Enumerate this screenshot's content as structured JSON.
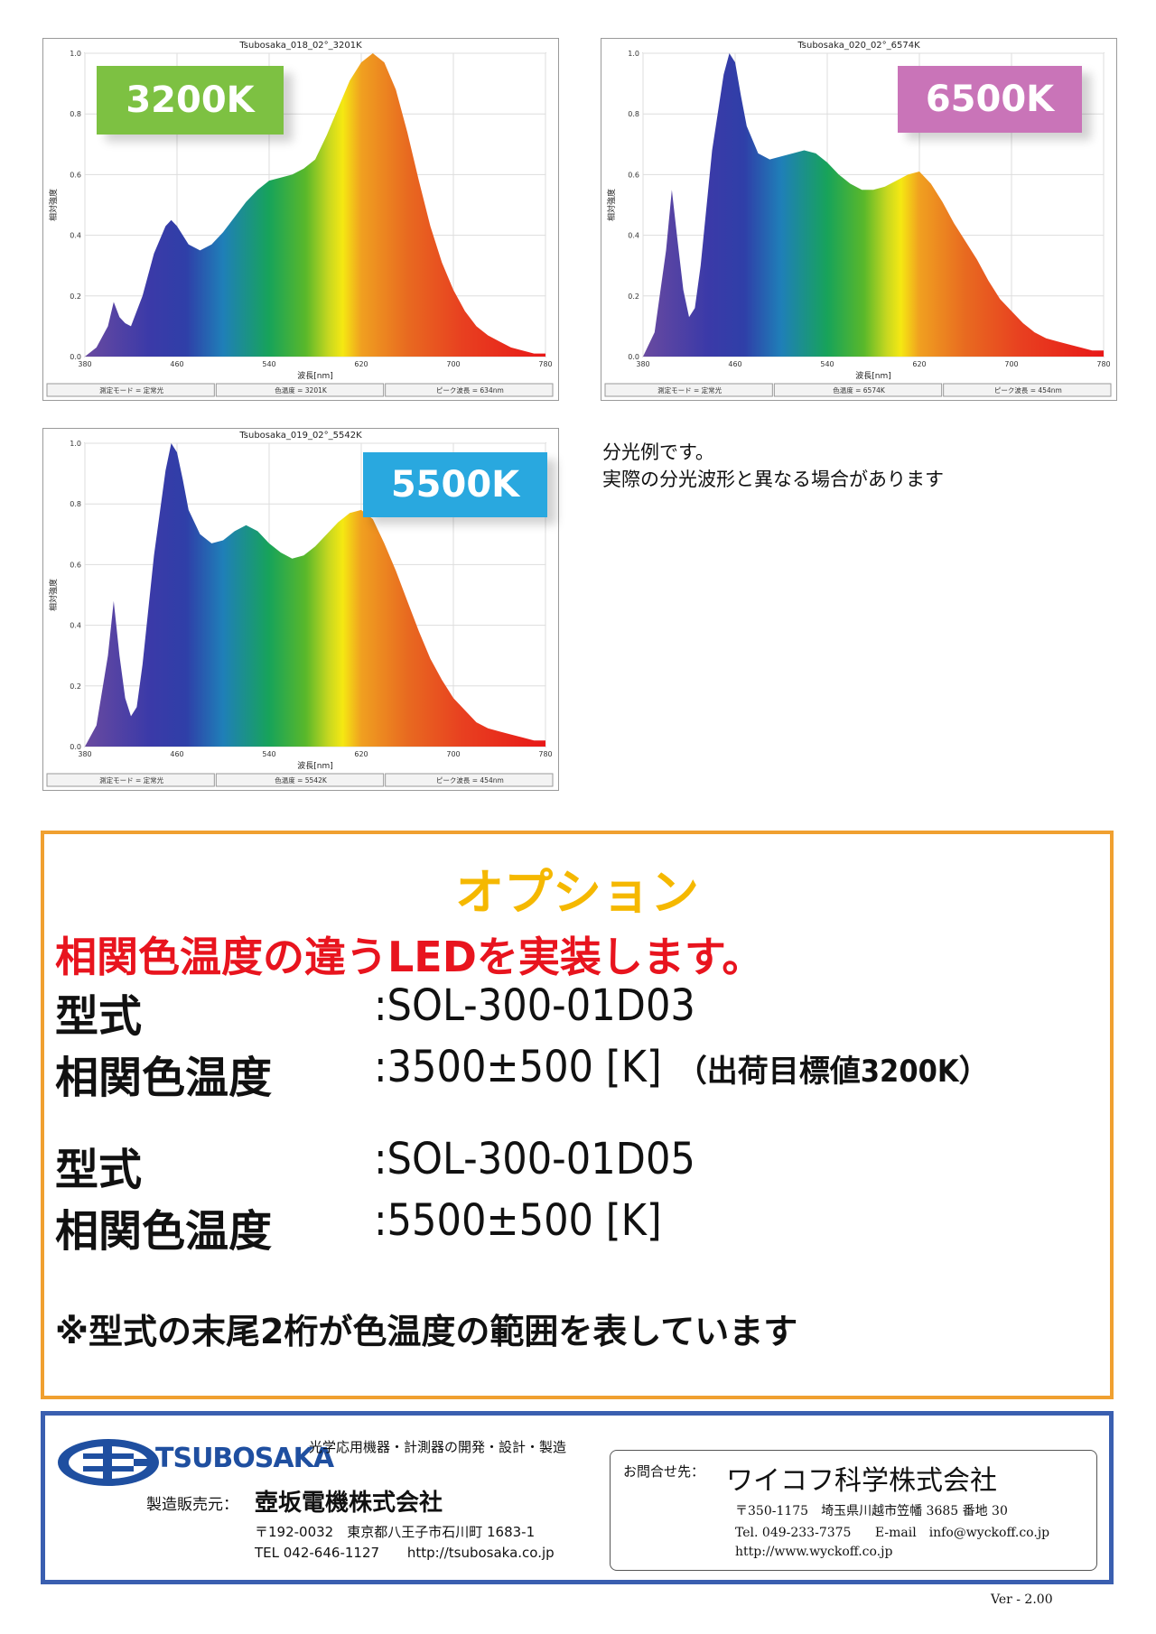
{
  "chart_data": [
    {
      "id": "c3200",
      "type": "area",
      "title": "Tsubosaka_018_02°_3201K",
      "badge": "3200K",
      "badge_color": "#7dc142",
      "xlabel": "波長[nm]",
      "ylabel": "相対強度",
      "xlim": [
        380,
        780
      ],
      "ylim": [
        0,
        1.0
      ],
      "xticks": [
        "380",
        "460",
        "540",
        "620",
        "700",
        "780"
      ],
      "yticks": [
        "0.0",
        "0.2",
        "0.4",
        "0.6",
        "0.8",
        "1.0"
      ],
      "grid": true,
      "x": [
        380,
        390,
        400,
        405,
        410,
        415,
        420,
        430,
        440,
        450,
        455,
        460,
        470,
        480,
        490,
        500,
        510,
        520,
        530,
        540,
        550,
        560,
        570,
        580,
        590,
        600,
        610,
        620,
        630,
        640,
        650,
        660,
        670,
        680,
        690,
        700,
        710,
        720,
        730,
        740,
        750,
        760,
        770,
        780
      ],
      "y": [
        0.0,
        0.03,
        0.1,
        0.18,
        0.13,
        0.11,
        0.1,
        0.2,
        0.34,
        0.43,
        0.45,
        0.43,
        0.37,
        0.35,
        0.37,
        0.41,
        0.46,
        0.51,
        0.55,
        0.58,
        0.59,
        0.6,
        0.62,
        0.65,
        0.73,
        0.82,
        0.91,
        0.97,
        1.0,
        0.97,
        0.88,
        0.74,
        0.58,
        0.43,
        0.31,
        0.22,
        0.15,
        0.1,
        0.07,
        0.05,
        0.03,
        0.02,
        0.01,
        0.01
      ],
      "status": [
        "測定モード = 定常光",
        "色温度 = 3201K",
        "ピーク波長 = 634nm"
      ]
    },
    {
      "id": "c6500",
      "type": "area",
      "title": "Tsubosaka_020_02°_6574K",
      "badge": "6500K",
      "badge_color": "#c974b8",
      "xlabel": "波長[nm]",
      "ylabel": "相対強度",
      "xlim": [
        380,
        780
      ],
      "ylim": [
        0,
        1.0
      ],
      "xticks": [
        "380",
        "460",
        "540",
        "620",
        "700",
        "780"
      ],
      "yticks": [
        "0.0",
        "0.2",
        "0.4",
        "0.6",
        "0.8",
        "1.0"
      ],
      "grid": true,
      "x": [
        380,
        390,
        400,
        405,
        410,
        415,
        420,
        425,
        430,
        440,
        450,
        455,
        460,
        465,
        470,
        480,
        490,
        500,
        510,
        520,
        530,
        540,
        550,
        560,
        570,
        580,
        590,
        600,
        610,
        620,
        630,
        640,
        650,
        660,
        670,
        680,
        690,
        700,
        710,
        720,
        730,
        740,
        750,
        760,
        770,
        780
      ],
      "y": [
        0.0,
        0.08,
        0.35,
        0.55,
        0.38,
        0.22,
        0.13,
        0.16,
        0.3,
        0.68,
        0.93,
        1.0,
        0.97,
        0.86,
        0.76,
        0.67,
        0.65,
        0.66,
        0.67,
        0.68,
        0.67,
        0.64,
        0.6,
        0.57,
        0.55,
        0.55,
        0.56,
        0.58,
        0.6,
        0.61,
        0.57,
        0.51,
        0.44,
        0.38,
        0.32,
        0.25,
        0.19,
        0.15,
        0.11,
        0.08,
        0.06,
        0.05,
        0.04,
        0.03,
        0.02,
        0.02
      ],
      "status": [
        "測定モード = 定常光",
        "色温度 = 6574K",
        "ピーク波長 = 454nm"
      ]
    },
    {
      "id": "c5500",
      "type": "area",
      "title": "Tsubosaka_019_02°_5542K",
      "badge": "5500K",
      "badge_color": "#29a8df",
      "xlabel": "波長[nm]",
      "ylabel": "相対強度",
      "xlim": [
        380,
        780
      ],
      "ylim": [
        0,
        1.0
      ],
      "xticks": [
        "380",
        "460",
        "540",
        "620",
        "700",
        "780"
      ],
      "yticks": [
        "0.0",
        "0.2",
        "0.4",
        "0.6",
        "0.8",
        "1.0"
      ],
      "grid": true,
      "x": [
        380,
        390,
        400,
        405,
        410,
        415,
        420,
        425,
        430,
        440,
        450,
        455,
        460,
        465,
        470,
        480,
        490,
        500,
        510,
        520,
        530,
        540,
        550,
        560,
        570,
        580,
        590,
        600,
        610,
        620,
        630,
        640,
        650,
        660,
        670,
        680,
        690,
        700,
        710,
        720,
        730,
        740,
        750,
        760,
        770,
        780
      ],
      "y": [
        0.0,
        0.07,
        0.3,
        0.48,
        0.3,
        0.16,
        0.1,
        0.13,
        0.27,
        0.63,
        0.91,
        1.0,
        0.97,
        0.88,
        0.78,
        0.7,
        0.67,
        0.68,
        0.71,
        0.73,
        0.71,
        0.67,
        0.64,
        0.62,
        0.63,
        0.66,
        0.7,
        0.74,
        0.77,
        0.78,
        0.75,
        0.67,
        0.58,
        0.48,
        0.38,
        0.29,
        0.22,
        0.16,
        0.12,
        0.08,
        0.06,
        0.05,
        0.04,
        0.03,
        0.02,
        0.02
      ],
      "status": [
        "測定モード = 定常光",
        "色温度 = 5542K",
        "ピーク波長 = 454nm"
      ]
    }
  ],
  "note": [
    "分光例です。",
    "実際の分光波形と異なる場合があります"
  ],
  "option": {
    "title": "オプション",
    "subtitle": "相関色温度の違うLEDを実装します。",
    "specs": [
      {
        "model_label": "型式",
        "model": ":SOL-300-01D03",
        "cct_label": "相関色温度",
        "cct": ":3500±500 [K]",
        "cct_note": "（出荷目標値3200K）"
      },
      {
        "model_label": "型式",
        "model": ":SOL-300-01D05",
        "cct_label": "相関色温度",
        "cct": ":5500±500 [K]",
        "cct_note": ""
      }
    ],
    "footnote": "※型式の末尾2桁が色温度の範囲を表しています"
  },
  "footer": {
    "logo": "TSUBOSAKA",
    "tagline": "光学応用機器・計測器の開発・設計・製造",
    "maker_label": "製造販売元：",
    "maker_name": "壺坂電機株式会社",
    "maker_address": "〒192-0032　東京都八王子市石川町 1683-1",
    "maker_tel": "TEL 042-646-1127",
    "maker_url": "http://tsubosaka.co.jp",
    "inquiry_label": "お問合せ先：",
    "inquiry_name": "ワイコフ科学株式会社",
    "inquiry_address": "〒350-1175　埼玉県川越市笠幡 3685 番地 30",
    "inquiry_tel": "Tel. 049-233-7375",
    "inquiry_email": "E-mail　info@wyckoff.co.jp",
    "inquiry_url": "http://www.wyckoff.co.jp",
    "brand_color": "#3a5fb0"
  },
  "version": "Ver - 2.00"
}
